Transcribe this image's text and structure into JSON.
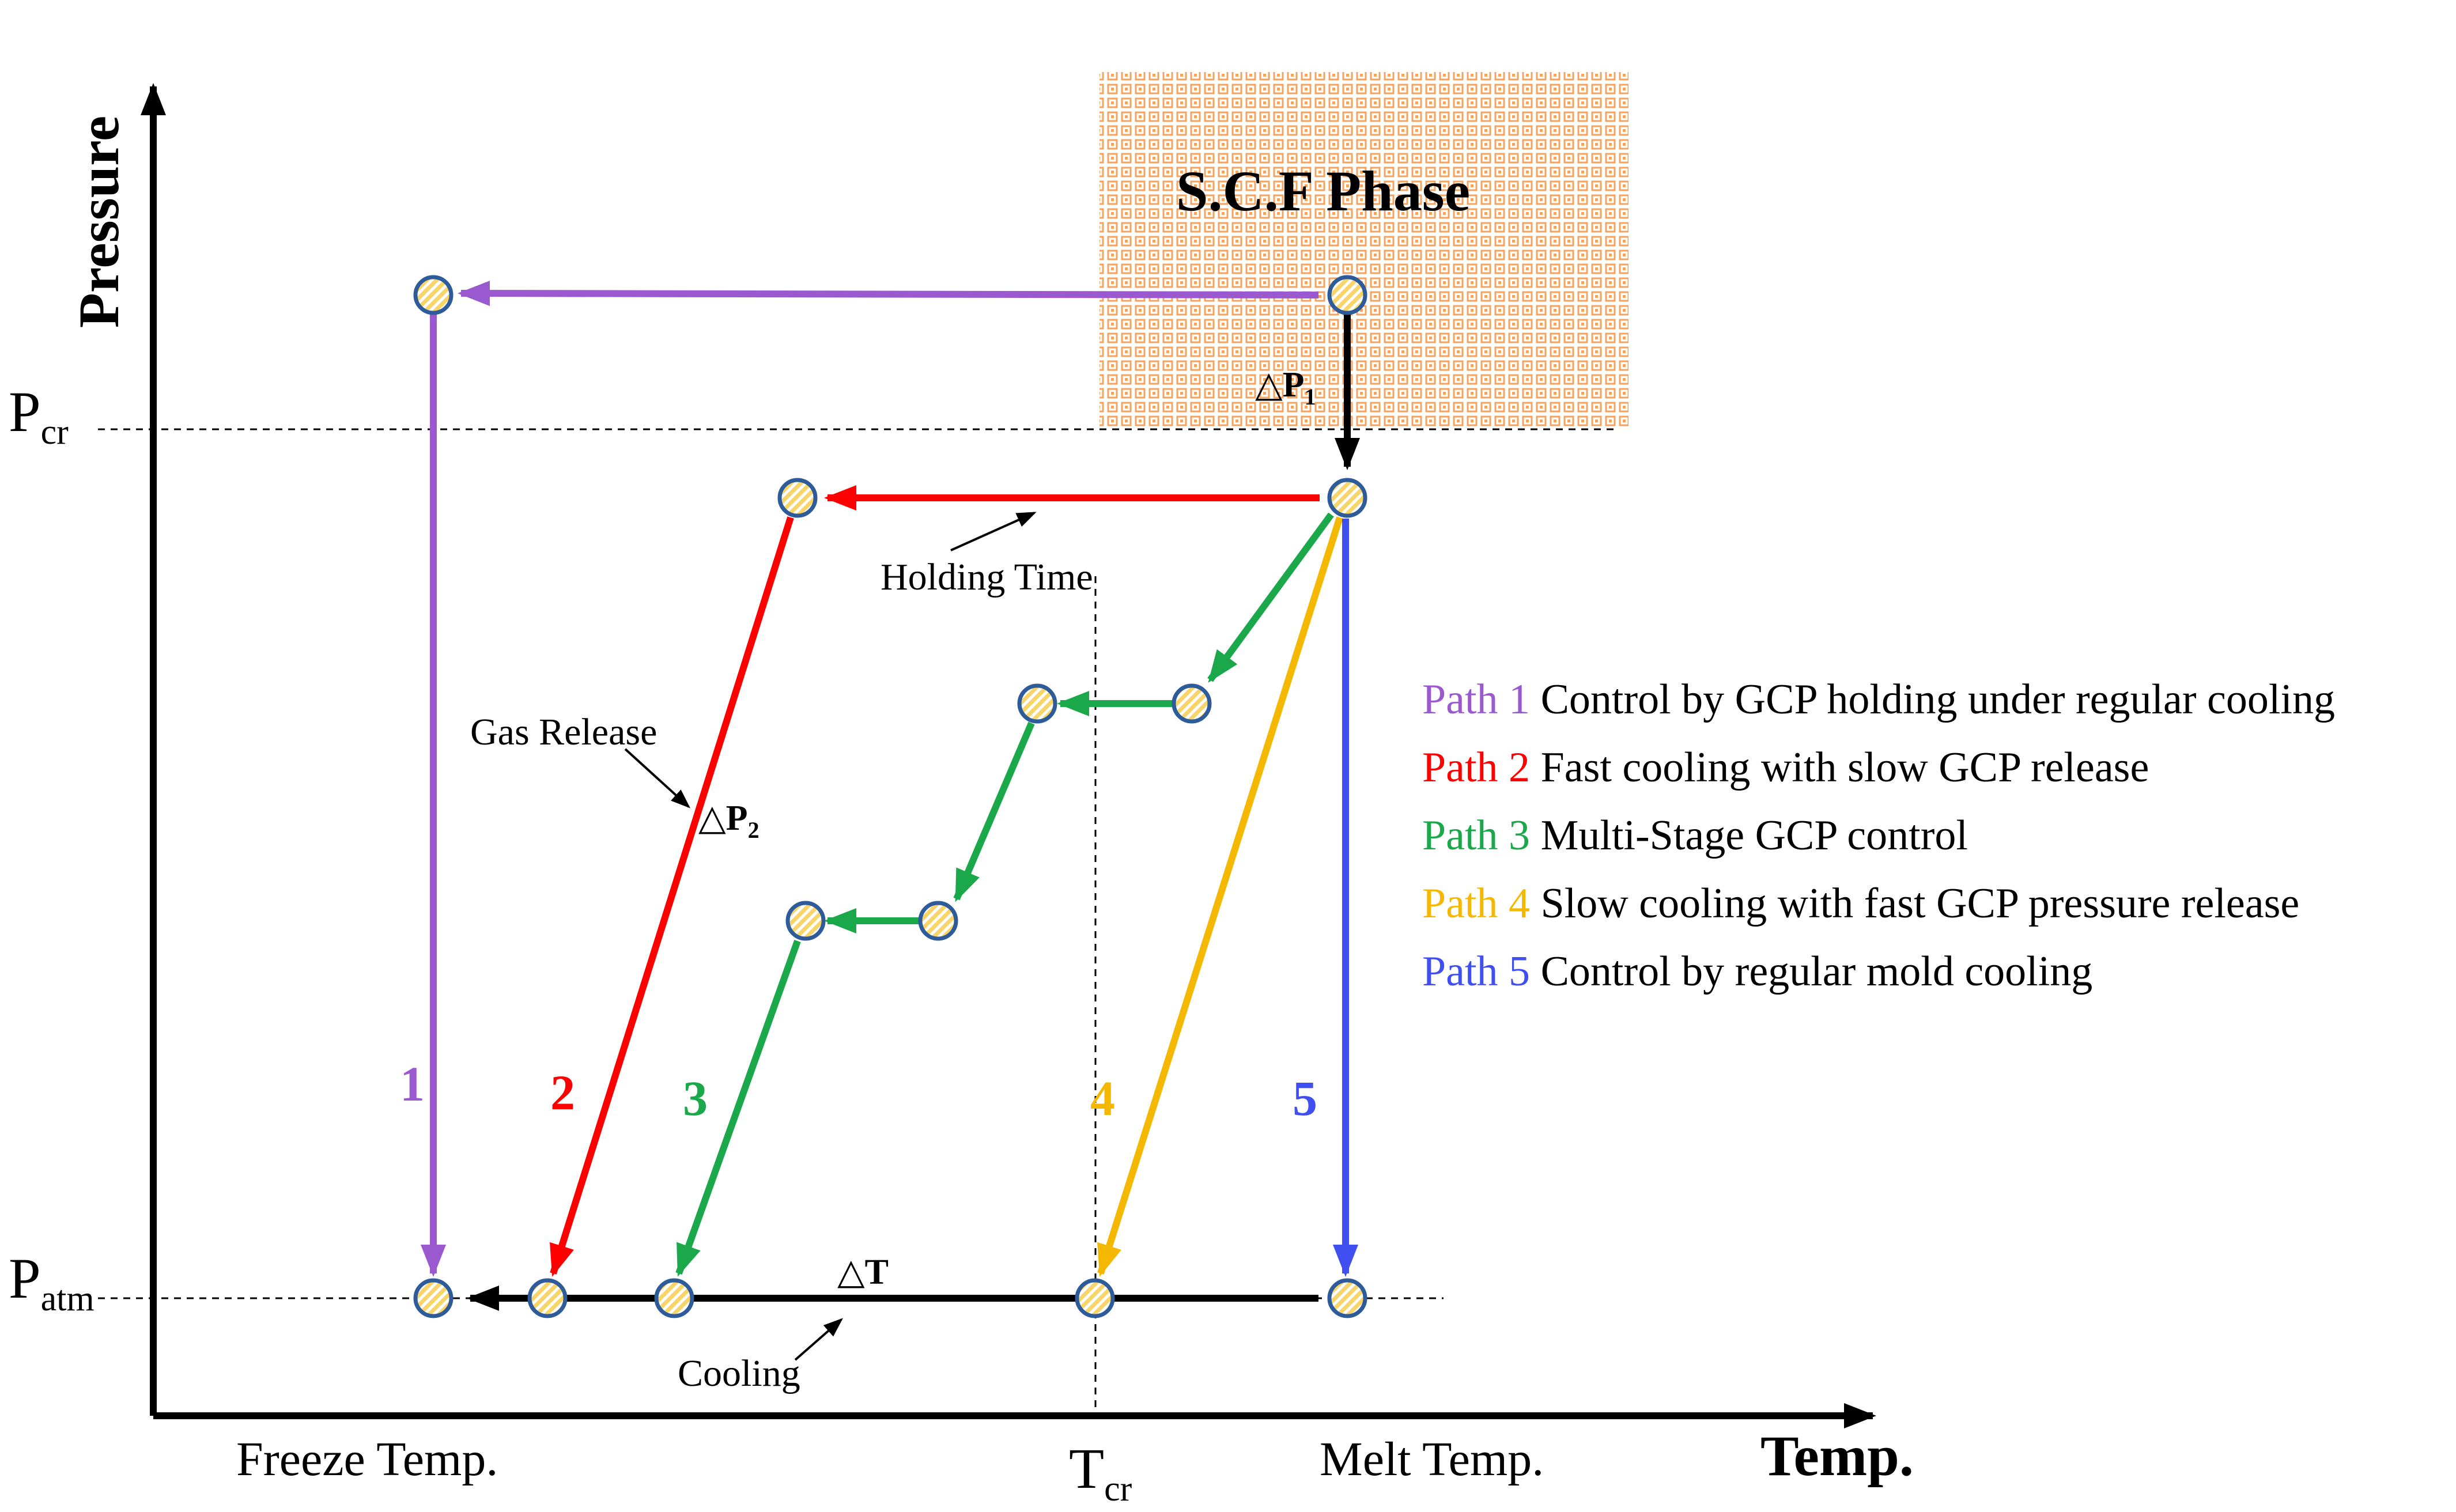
{
  "axes": {
    "y_title": "Pressure",
    "x_title": "Temp.",
    "p_cr_main": "P",
    "p_cr_sub": "cr",
    "p_atm_main": "P",
    "p_atm_sub": "atm",
    "t_cr_main": "T",
    "t_cr_sub": "cr",
    "freeze_label": "Freeze Temp.",
    "melt_label": "Melt Temp."
  },
  "region": {
    "label": "S.C.F Phase",
    "color": "#f4a460"
  },
  "annotations": {
    "dp1_main": "△P",
    "dp1_sub": "1",
    "dp2_main": "△P",
    "dp2_sub": "2",
    "dt_label": "△T",
    "holding_time": "Holding Time",
    "gas_release": "Gas Release",
    "cooling": "Cooling"
  },
  "paths": [
    {
      "number": "1",
      "prefix": "Path 1",
      "description": "Control by GCP holding under regular cooling",
      "color": "#9b59d0"
    },
    {
      "number": "2",
      "prefix": "Path 2",
      "description": "Fast cooling with slow GCP release",
      "color": "#ff0000"
    },
    {
      "number": "3",
      "prefix": "Path 3",
      "description": "Multi-Stage GCP control",
      "color": "#1aa84a"
    },
    {
      "number": "4",
      "prefix": "Path 4",
      "description": "Slow cooling with fast GCP pressure release",
      "color": "#f5b800"
    },
    {
      "number": "5",
      "prefix": "Path 5",
      "description": "Control by regular mold cooling",
      "color": "#3f4ff0"
    }
  ],
  "colors": {
    "axis": "#000000",
    "marker_fill": "#f7d56a",
    "marker_stroke": "#2e5b9a"
  }
}
